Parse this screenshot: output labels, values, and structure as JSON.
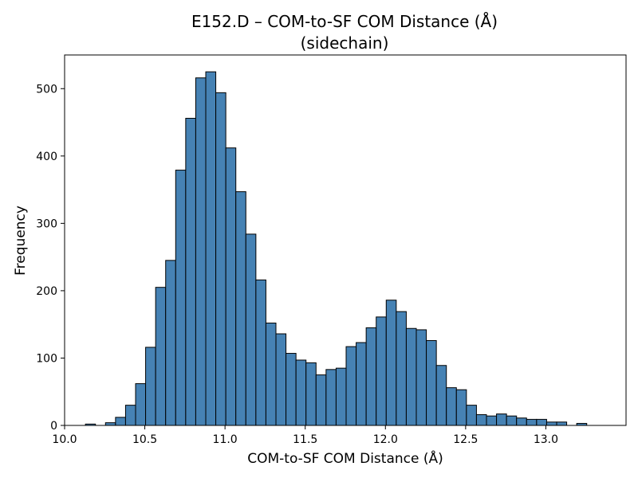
{
  "chart_data": {
    "type": "histogram",
    "title": "E152.D – COM-to-SF COM Distance (Å)",
    "subtitle": "(sidechain)",
    "xlabel": "COM-to-SF COM Distance (Å)",
    "ylabel": "Frequency",
    "xlim": [
      10.0,
      13.5
    ],
    "ylim": [
      0,
      550
    ],
    "x_ticks": [
      10.0,
      10.5,
      11.0,
      11.5,
      12.0,
      12.5,
      13.0
    ],
    "y_ticks": [
      0,
      100,
      200,
      300,
      400,
      500
    ],
    "bin_start": 10.13,
    "bin_width": 0.0625,
    "values": [
      2,
      0,
      4,
      12,
      30,
      62,
      116,
      205,
      245,
      379,
      456,
      516,
      525,
      494,
      412,
      347,
      284,
      216,
      152,
      136,
      107,
      97,
      93,
      75,
      83,
      85,
      117,
      123,
      145,
      161,
      186,
      169,
      144,
      142,
      126,
      89,
      56,
      53,
      30,
      16,
      14,
      17,
      14,
      11,
      9,
      9,
      5,
      5,
      0,
      3
    ],
    "bar_color": "#4682b4",
    "edge_color": "#000000",
    "grid": false,
    "legend": "none"
  }
}
